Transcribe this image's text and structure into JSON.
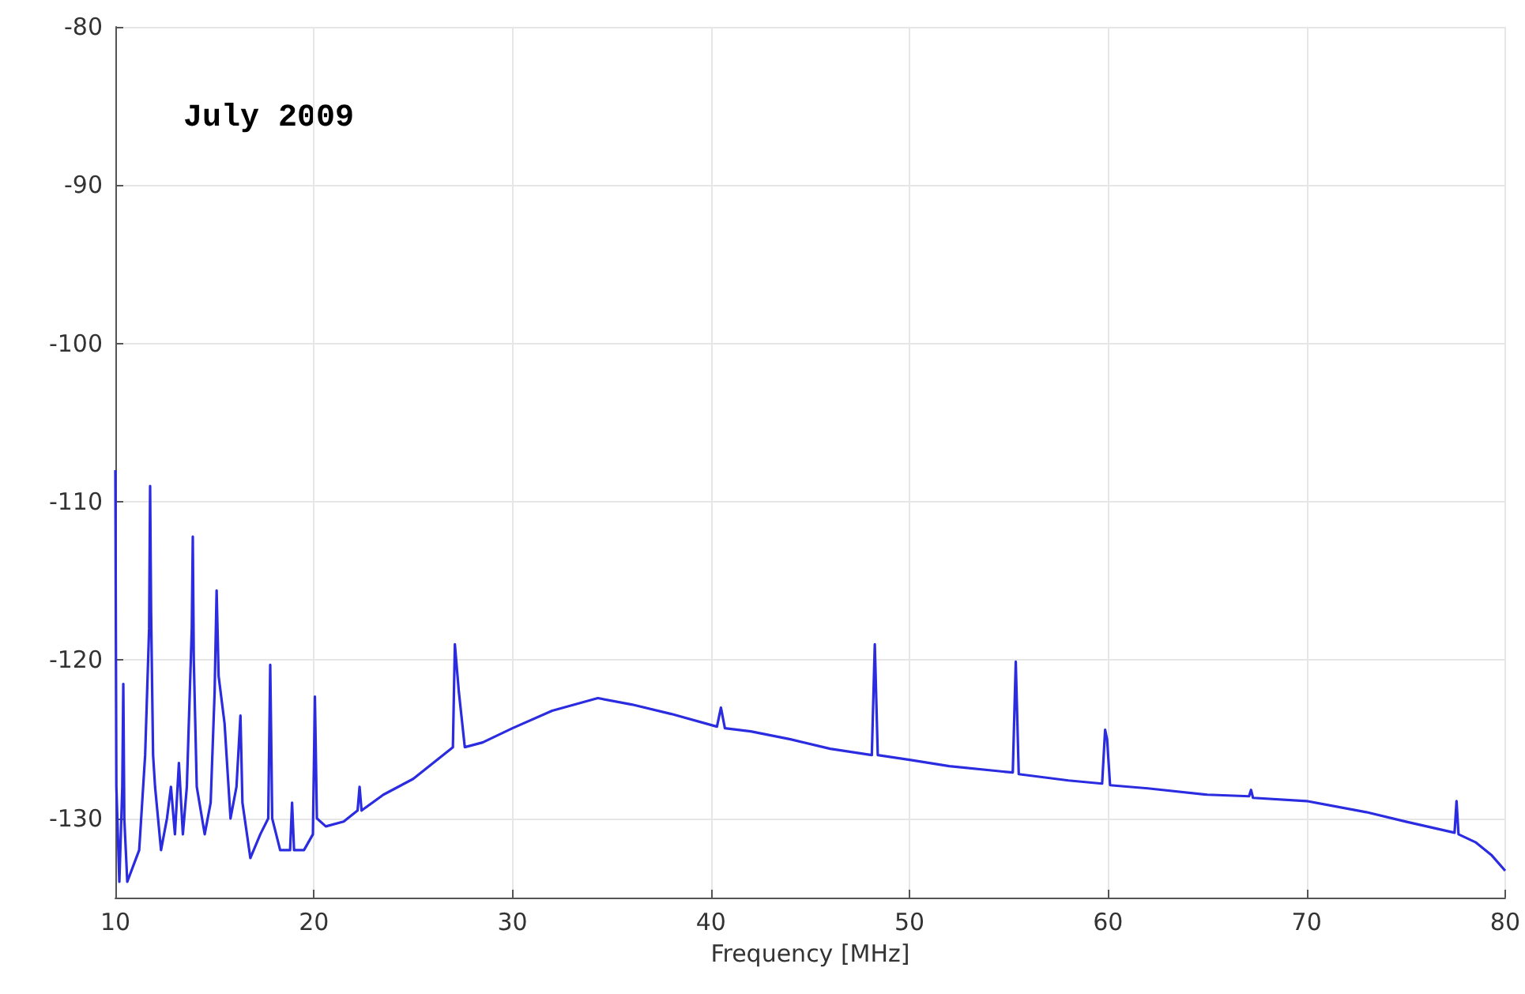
{
  "chart_data": {
    "type": "line",
    "xlabel": "Frequency [MHz]",
    "annotations": [
      "July 2009"
    ],
    "xlim": [
      10,
      80
    ],
    "ylim": [
      -135,
      -80
    ],
    "xticks": [
      10,
      20,
      30,
      40,
      50,
      60,
      70,
      80
    ],
    "yticks": [
      -80,
      -90,
      -100,
      -110,
      -120,
      -130
    ],
    "grid": true,
    "marker": "none",
    "line_style": "solid",
    "series": [
      {
        "color": "#2b2be0",
        "x": [
          10,
          10.05,
          10.2,
          10.35,
          10.4,
          10.45,
          10.6,
          10.9,
          11.2,
          11.5,
          11.7,
          11.75,
          11.8,
          11.9,
          12.0,
          12.3,
          12.6,
          12.8,
          13.0,
          13.2,
          13.4,
          13.6,
          13.85,
          13.9,
          13.95,
          14.1,
          14.5,
          14.8,
          15.0,
          15.1,
          15.2,
          15.5,
          15.8,
          16.1,
          16.3,
          16.4,
          16.8,
          17.3,
          17.7,
          17.8,
          17.9,
          18.3,
          18.8,
          18.9,
          19.0,
          19.5,
          19.95,
          20.05,
          20.15,
          20.6,
          21.5,
          22.2,
          22.3,
          22.4,
          23.5,
          25,
          26.5,
          27.0,
          27.1,
          27.3,
          27.6,
          28.5,
          30,
          32,
          34.3,
          36,
          38,
          40.3,
          40.5,
          40.7,
          42,
          44,
          46,
          48.1,
          48.25,
          48.4,
          50,
          52,
          55.2,
          55.35,
          55.5,
          58,
          59.7,
          59.85,
          59.95,
          60.1,
          62,
          65,
          67.1,
          67.2,
          67.3,
          70,
          73,
          75,
          77.45,
          77.55,
          77.65,
          78.5,
          79.3,
          80
        ],
        "values": [
          -108,
          -128,
          -134,
          -128,
          -121.5,
          -130,
          -134,
          -133,
          -132,
          -126,
          -118,
          -109,
          -117,
          -126,
          -128,
          -132,
          -130,
          -128,
          -131,
          -126.5,
          -131,
          -128,
          -118,
          -112.2,
          -120,
          -128,
          -131,
          -129,
          -122,
          -115.6,
          -121,
          -124,
          -130,
          -128,
          -123.5,
          -129,
          -132.5,
          -131,
          -130,
          -120.3,
          -130,
          -132,
          -132,
          -129,
          -132,
          -132,
          -131,
          -122.3,
          -130,
          -130.5,
          -130.2,
          -129.5,
          -128,
          -129.5,
          -128.5,
          -127.5,
          -126,
          -125.5,
          -119,
          -122,
          -125.5,
          -125.2,
          -124.3,
          -123.2,
          -122.4,
          -122.8,
          -123.4,
          -124.2,
          -123,
          -124.3,
          -124.5,
          -125,
          -125.6,
          -126,
          -119,
          -126,
          -126.3,
          -126.7,
          -127.1,
          -120.1,
          -127.2,
          -127.6,
          -127.8,
          -124.4,
          -125,
          -127.9,
          -128.1,
          -128.5,
          -128.6,
          -128.2,
          -128.7,
          -128.9,
          -129.6,
          -130.2,
          -130.9,
          -128.9,
          -131,
          -131.5,
          -132.3,
          -133.3
        ]
      }
    ]
  }
}
